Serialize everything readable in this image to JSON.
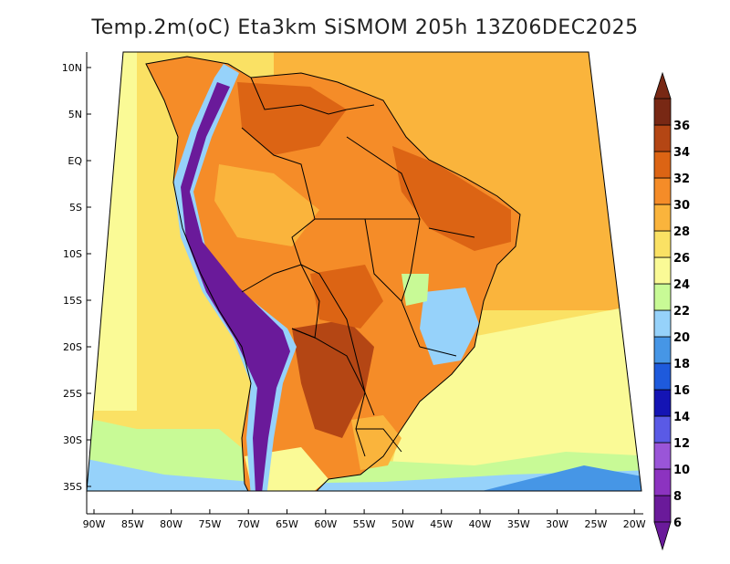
{
  "title": "Temp.2m(oC) Eta3km SiSMOM 205h 13Z06DEC2025",
  "lat_labels": [
    "10N",
    "5N",
    "EQ",
    "5S",
    "10S",
    "15S",
    "20S",
    "25S",
    "30S",
    "35S"
  ],
  "lon_labels": [
    "90W",
    "85W",
    "80W",
    "75W",
    "70W",
    "65W",
    "60W",
    "55W",
    "50W",
    "45W",
    "40W",
    "35W",
    "30W",
    "25W",
    "20W"
  ],
  "colorbar": {
    "labels": [
      "6",
      "8",
      "10",
      "12",
      "14",
      "16",
      "18",
      "20",
      "22",
      "24",
      "26",
      "28",
      "30",
      "32",
      "34",
      "36"
    ],
    "colors": [
      "#6a1a9a",
      "#8c33c0",
      "#9a55d8",
      "#5a5ae6",
      "#1414b4",
      "#1e5adc",
      "#4696e6",
      "#96d2fa",
      "#c8fa96",
      "#fafa96",
      "#fae164",
      "#fab43c",
      "#f58c28",
      "#dc6414",
      "#b44614",
      "#782814"
    ]
  },
  "palette": {
    "ocean_warm": "#fab43c",
    "ocean_mid": "#fae164",
    "ocean_cool": "#fafa96",
    "land_hot": "#dc6414",
    "land_warm": "#f58c28",
    "andes_cold": "#6a1a9a",
    "south_cool": "#96d2fa",
    "border": "#000000"
  }
}
